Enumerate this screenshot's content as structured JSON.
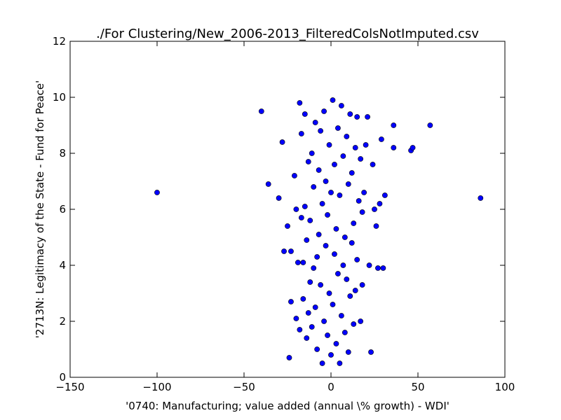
{
  "chart_data": {
    "type": "scatter",
    "title": "./For Clustering/New_2006-2013_FilteredColsNotImputed.csv",
    "xlabel": "'0740: Manufacturing; value added  (annual \\% growth) - WDI'",
    "ylabel": "'2713N: Legitimacy of the State - Fund for Peace'",
    "xlim": [
      -150,
      100
    ],
    "ylim": [
      0,
      12
    ],
    "xticks": [
      -150,
      -100,
      -50,
      0,
      50,
      100
    ],
    "xtick_labels": [
      "−150",
      "−100",
      "−50",
      "0",
      "50",
      "100"
    ],
    "yticks": [
      0,
      2,
      4,
      6,
      8,
      10,
      12
    ],
    "ytick_labels": [
      "0",
      "2",
      "4",
      "6",
      "8",
      "10",
      "12"
    ],
    "grid": false,
    "legend": false,
    "marker_color": "#0000ff",
    "marker_edge": "#000000",
    "points": [
      [
        -100,
        6.6
      ],
      [
        86,
        6.4
      ],
      [
        57,
        9.0
      ],
      [
        -40,
        9.5
      ],
      [
        -36,
        6.9
      ],
      [
        -30,
        6.4
      ],
      [
        -28,
        8.4
      ],
      [
        -27,
        4.5
      ],
      [
        -25,
        5.4
      ],
      [
        -24,
        0.7
      ],
      [
        -23,
        4.5
      ],
      [
        -23,
        2.7
      ],
      [
        -21,
        7.2
      ],
      [
        -20,
        2.1
      ],
      [
        -20,
        6.0
      ],
      [
        -19,
        4.1
      ],
      [
        -18,
        1.7
      ],
      [
        -18,
        9.8
      ],
      [
        -17,
        5.7
      ],
      [
        -17,
        8.7
      ],
      [
        -16,
        2.8
      ],
      [
        -16,
        4.1
      ],
      [
        -15,
        9.4
      ],
      [
        -15,
        6.1
      ],
      [
        -14,
        1.4
      ],
      [
        -14,
        4.9
      ],
      [
        -13,
        7.7
      ],
      [
        -13,
        2.3
      ],
      [
        -12,
        3.4
      ],
      [
        -12,
        5.6
      ],
      [
        -11,
        1.8
      ],
      [
        -11,
        8.0
      ],
      [
        -10,
        3.9
      ],
      [
        -10,
        6.8
      ],
      [
        -9,
        2.5
      ],
      [
        -9,
        9.1
      ],
      [
        -8,
        4.3
      ],
      [
        -8,
        1.0
      ],
      [
        -7,
        5.1
      ],
      [
        -7,
        7.4
      ],
      [
        -6,
        3.3
      ],
      [
        -6,
        8.8
      ],
      [
        -5,
        0.5
      ],
      [
        -5,
        6.2
      ],
      [
        -4,
        2.0
      ],
      [
        -4,
        9.5
      ],
      [
        -3,
        4.7
      ],
      [
        -3,
        7.0
      ],
      [
        -2,
        1.5
      ],
      [
        -2,
        5.8
      ],
      [
        -1,
        3.0
      ],
      [
        -1,
        8.3
      ],
      [
        0,
        0.8
      ],
      [
        0,
        6.6
      ],
      [
        1,
        2.6
      ],
      [
        1,
        9.9
      ],
      [
        2,
        4.4
      ],
      [
        2,
        7.6
      ],
      [
        3,
        1.2
      ],
      [
        3,
        5.3
      ],
      [
        4,
        3.7
      ],
      [
        4,
        8.9
      ],
      [
        5,
        0.5
      ],
      [
        5,
        6.5
      ],
      [
        6,
        2.2
      ],
      [
        6,
        9.7
      ],
      [
        7,
        4.0
      ],
      [
        7,
        7.9
      ],
      [
        8,
        1.6
      ],
      [
        8,
        5.0
      ],
      [
        9,
        3.5
      ],
      [
        9,
        8.6
      ],
      [
        10,
        0.9
      ],
      [
        10,
        6.9
      ],
      [
        11,
        2.9
      ],
      [
        11,
        9.4
      ],
      [
        12,
        4.8
      ],
      [
        12,
        7.3
      ],
      [
        13,
        1.9
      ],
      [
        13,
        5.5
      ],
      [
        14,
        3.1
      ],
      [
        14,
        8.2
      ],
      [
        15,
        4.2
      ],
      [
        15,
        9.3
      ],
      [
        16,
        6.3
      ],
      [
        17,
        2.0
      ],
      [
        17,
        7.8
      ],
      [
        18,
        3.3
      ],
      [
        18,
        5.9
      ],
      [
        19,
        6.6
      ],
      [
        20,
        8.3
      ],
      [
        21,
        9.3
      ],
      [
        22,
        4.0
      ],
      [
        23,
        0.9
      ],
      [
        24,
        7.6
      ],
      [
        25,
        6.0
      ],
      [
        26,
        5.4
      ],
      [
        27,
        3.9
      ],
      [
        28,
        6.2
      ],
      [
        29,
        8.5
      ],
      [
        30,
        3.9
      ],
      [
        31,
        6.5
      ],
      [
        36,
        9.0
      ],
      [
        36,
        8.2
      ],
      [
        46,
        8.1
      ],
      [
        47,
        8.2
      ]
    ]
  }
}
